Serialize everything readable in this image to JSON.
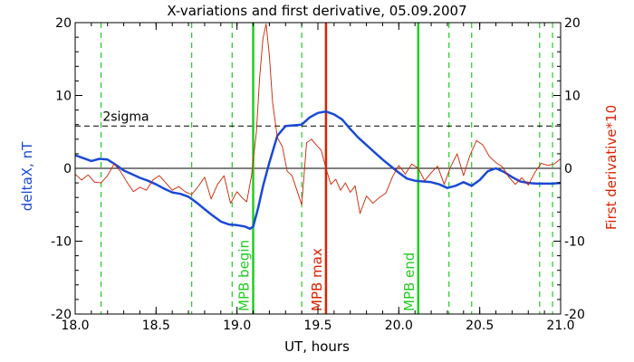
{
  "chart_data": {
    "type": "line",
    "title": "X-variations and first derivative, 05.09.2007",
    "xlabel": "UT, hours",
    "ylabel_left": "deltaX, nT",
    "ylabel_right": "First derivative*10",
    "xlim": [
      18.0,
      21.0
    ],
    "ylim_left": [
      -20,
      20
    ],
    "ylim_right": [
      -20,
      20
    ],
    "x_ticks": [
      "18.0",
      "18.5",
      "19.0",
      "19.5",
      "20.0",
      "20.5",
      "21.0"
    ],
    "y_ticks_left": [
      "20",
      "10",
      "0",
      "-10",
      "-20"
    ],
    "y_ticks_right": [
      "20",
      "10",
      "0",
      "-10",
      "-20"
    ],
    "colors": {
      "deltaX": "#1a4ad6",
      "derivative": "#cc2200",
      "mpb_begin_end": "#22cc22",
      "mpb_max": "#dd2200",
      "dashed_green": "#22cc22",
      "axes": "#000000"
    },
    "sigma_level": 5.8,
    "sigma_label": "2sigma",
    "dashed_verticals": [
      18.16,
      18.72,
      18.97,
      19.4,
      20.31,
      20.45,
      20.87,
      20.95
    ],
    "markers": [
      {
        "x": 19.1,
        "label": "MPB begin",
        "color": "#22cc22"
      },
      {
        "x": 19.55,
        "label": "MPB max",
        "color": "#dd2200"
      },
      {
        "x": 20.12,
        "label": "MPB end",
        "color": "#22cc22"
      }
    ],
    "series": [
      {
        "name": "deltaX",
        "axis": "left",
        "x": [
          18.0,
          18.05,
          18.1,
          18.15,
          18.2,
          18.25,
          18.3,
          18.35,
          18.4,
          18.45,
          18.5,
          18.55,
          18.6,
          18.65,
          18.7,
          18.75,
          18.8,
          18.85,
          18.9,
          18.95,
          19.0,
          19.05,
          19.08,
          19.1,
          19.13,
          19.16,
          19.2,
          19.25,
          19.3,
          19.35,
          19.4,
          19.45,
          19.5,
          19.55,
          19.6,
          19.65,
          19.7,
          19.75,
          19.8,
          19.85,
          19.9,
          19.95,
          20.0,
          20.05,
          20.1,
          20.15,
          20.2,
          20.25,
          20.3,
          20.35,
          20.4,
          20.45,
          20.5,
          20.55,
          20.6,
          20.65,
          20.7,
          20.75,
          20.8,
          20.85,
          20.9,
          20.95,
          21.0
        ],
        "values": [
          1.8,
          1.4,
          1.0,
          1.3,
          1.2,
          0.5,
          -0.3,
          -0.8,
          -1.3,
          -1.7,
          -2.2,
          -2.8,
          -3.3,
          -3.5,
          -3.9,
          -4.7,
          -5.6,
          -6.5,
          -7.3,
          -7.7,
          -7.8,
          -8.0,
          -8.3,
          -8.0,
          -5.5,
          -2.5,
          0.8,
          4.5,
          5.8,
          5.9,
          6.0,
          7.0,
          7.6,
          7.8,
          7.4,
          6.7,
          5.4,
          4.2,
          3.2,
          2.2,
          1.2,
          0.3,
          -0.6,
          -1.4,
          -1.7,
          -1.8,
          -1.9,
          -2.2,
          -2.7,
          -2.4,
          -1.9,
          -2.4,
          -1.6,
          -0.4,
          0.0,
          -0.5,
          -1.2,
          -1.8,
          -2.0,
          -2.1,
          -2.1,
          -2.1,
          -2.0
        ]
      },
      {
        "name": "First derivative*10",
        "axis": "right",
        "x": [
          18.0,
          18.04,
          18.08,
          18.12,
          18.16,
          18.2,
          18.24,
          18.28,
          18.32,
          18.36,
          18.4,
          18.44,
          18.48,
          18.52,
          18.56,
          18.6,
          18.64,
          18.68,
          18.72,
          18.76,
          18.8,
          18.84,
          18.88,
          18.92,
          18.96,
          19.0,
          19.03,
          19.06,
          19.09,
          19.12,
          19.14,
          19.16,
          19.18,
          19.2,
          19.22,
          19.25,
          19.28,
          19.31,
          19.34,
          19.37,
          19.4,
          19.43,
          19.46,
          19.49,
          19.52,
          19.55,
          19.58,
          19.61,
          19.64,
          19.67,
          19.7,
          19.73,
          19.76,
          19.8,
          19.84,
          19.88,
          19.92,
          19.96,
          20.0,
          20.04,
          20.08,
          20.12,
          20.16,
          20.2,
          20.24,
          20.28,
          20.32,
          20.36,
          20.4,
          20.44,
          20.48,
          20.52,
          20.56,
          20.6,
          20.64,
          20.68,
          20.72,
          20.76,
          20.8,
          20.84,
          20.88,
          20.92,
          20.96,
          21.0
        ],
        "values": [
          -0.8,
          -1.6,
          -0.9,
          -1.9,
          -2.0,
          -1.0,
          0.6,
          -0.4,
          -1.9,
          -3.2,
          -2.6,
          -3.0,
          -1.6,
          -1.0,
          -2.0,
          -3.0,
          -2.5,
          -3.2,
          -3.6,
          -2.5,
          -1.2,
          -4.2,
          -2.2,
          -1.0,
          -4.8,
          -3.2,
          -4.0,
          -4.6,
          -1.0,
          5.0,
          12.5,
          17.8,
          19.8,
          15.5,
          9.0,
          4.2,
          3.0,
          -0.4,
          -1.0,
          -3.0,
          -5.0,
          3.5,
          4.0,
          3.2,
          2.5,
          0.0,
          -2.2,
          -1.5,
          -3.0,
          -2.0,
          -3.3,
          -2.4,
          -6.2,
          -3.8,
          -4.8,
          -4.0,
          -3.4,
          -1.2,
          0.4,
          -0.8,
          0.6,
          0.0,
          -1.7,
          -0.6,
          0.3,
          -2.2,
          0.2,
          2.0,
          -1.0,
          1.8,
          3.8,
          3.2,
          1.6,
          0.8,
          0.2,
          -1.2,
          -2.2,
          -1.3,
          -2.3,
          -0.6,
          0.7,
          0.4,
          0.6,
          1.3
        ]
      }
    ]
  }
}
